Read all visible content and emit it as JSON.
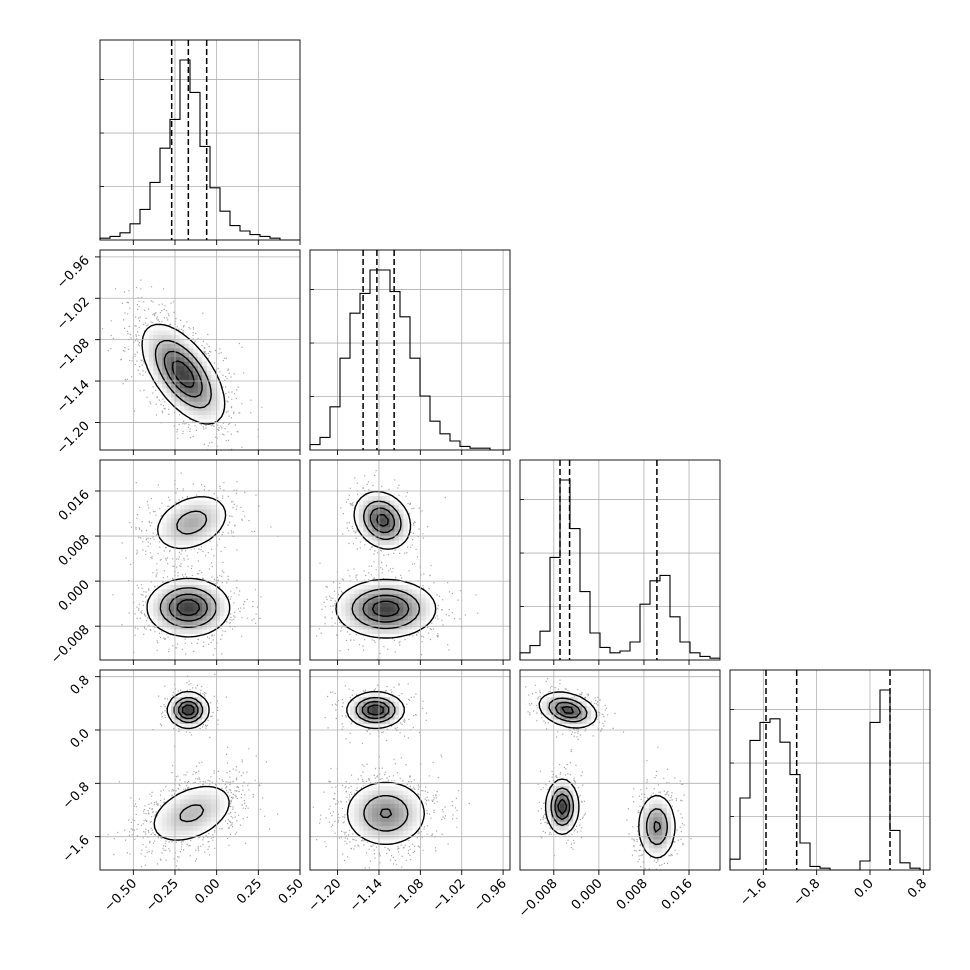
{
  "chart_data": {
    "type": "corner",
    "n_params": 4,
    "params": [
      {
        "range": [
          -0.7,
          0.5
        ],
        "ticks": [
          -0.5,
          -0.25,
          0.0,
          0.25,
          0.5
        ],
        "tick_labels": [
          "−0.50",
          "−0.25",
          "0.00",
          "0.25",
          "0.50"
        ],
        "quantiles": [
          -0.27,
          -0.17,
          -0.06
        ]
      },
      {
        "range": [
          -1.24,
          -0.95
        ],
        "ticks": [
          -1.2,
          -1.14,
          -1.08,
          -1.02,
          -0.96
        ],
        "tick_labels": [
          "−1.20",
          "−1.14",
          "−1.08",
          "−1.02",
          "−0.96"
        ],
        "quantiles": [
          -1.163,
          -1.143,
          -1.118
        ]
      },
      {
        "range": [
          -0.014,
          0.0215
        ],
        "ticks": [
          -0.008,
          0.0,
          0.008,
          0.016
        ],
        "tick_labels": [
          "−0.008",
          "0.000",
          "0.008",
          "0.016"
        ],
        "quantiles": [
          -0.0069,
          -0.0052,
          0.0103
        ]
      },
      {
        "range": [
          -2.1,
          0.9
        ],
        "ticks": [
          -1.6,
          -0.8,
          0.0,
          0.8
        ],
        "tick_labels": [
          "−1.6",
          "−0.8",
          "0.0",
          "0.8"
        ],
        "quantiles": [
          -1.56,
          -1.1,
          0.3
        ]
      }
    ],
    "histograms": [
      {
        "param": 0,
        "values": [
          1,
          2,
          4,
          9,
          17,
          32,
          51,
          67,
          100,
          82,
          52,
          29,
          16,
          8,
          5,
          3,
          2,
          1,
          0,
          0
        ]
      },
      {
        "param": 1,
        "values": [
          3,
          7,
          24,
          51,
          76,
          87,
          100,
          100,
          88,
          74,
          51,
          30,
          16,
          9,
          5,
          2,
          1,
          1,
          0,
          0
        ]
      },
      {
        "param": 2,
        "values": [
          4,
          8,
          16,
          57,
          100,
          73,
          38,
          15,
          7,
          4,
          5,
          10,
          31,
          44,
          47,
          24,
          10,
          4,
          2,
          1
        ]
      },
      {
        "param": 3,
        "values": [
          6,
          40,
          72,
          82,
          84,
          71,
          53,
          15,
          2,
          1,
          0,
          0,
          0,
          5,
          82,
          100,
          22,
          4,
          1,
          0
        ]
      }
    ],
    "panels_2d": [
      {
        "row": 1,
        "col": 0,
        "clusters": [
          {
            "cx": -0.2,
            "cy": -1.13,
            "sx": 0.12,
            "sy": 0.035,
            "rho": -0.6,
            "w": 1
          }
        ]
      },
      {
        "row": 2,
        "col": 0,
        "clusters": [
          {
            "cx": -0.15,
            "cy": 0.0104,
            "sx": 0.12,
            "sy": 0.0027,
            "rho": 0.3,
            "w": 0.35
          },
          {
            "cx": -0.17,
            "cy": -0.0047,
            "sx": 0.12,
            "sy": 0.0025,
            "rho": 0.0,
            "w": 0.65
          }
        ]
      },
      {
        "row": 2,
        "col": 1,
        "clusters": [
          {
            "cx": -1.135,
            "cy": 0.0108,
            "sx": 0.02,
            "sy": 0.0025,
            "rho": -0.2,
            "w": 0.35
          },
          {
            "cx": -1.13,
            "cy": -0.0049,
            "sx": 0.035,
            "sy": 0.0025,
            "rho": 0.0,
            "w": 0.65
          }
        ]
      },
      {
        "row": 3,
        "col": 0,
        "clusters": [
          {
            "cx": -0.17,
            "cy": 0.3,
            "sx": 0.06,
            "sy": 0.13,
            "rho": 0.0,
            "w": 0.35
          },
          {
            "cx": -0.15,
            "cy": -1.25,
            "sx": 0.14,
            "sy": 0.25,
            "rho": 0.4,
            "w": 0.65
          }
        ]
      },
      {
        "row": 3,
        "col": 1,
        "clusters": [
          {
            "cx": -1.145,
            "cy": 0.3,
            "sx": 0.02,
            "sy": 0.13,
            "rho": 0.0,
            "w": 0.35
          },
          {
            "cx": -1.13,
            "cy": -1.25,
            "sx": 0.03,
            "sy": 0.25,
            "rho": 0.0,
            "w": 0.65
          }
        ]
      },
      {
        "row": 3,
        "col": 2,
        "clusters": [
          {
            "cx": -0.0055,
            "cy": 0.3,
            "sx": 0.0025,
            "sy": 0.13,
            "rho": -0.3,
            "w": 0.35
          },
          {
            "cx": -0.0065,
            "cy": -1.15,
            "sx": 0.0014,
            "sy": 0.2,
            "rho": 0.0,
            "w": 0.32
          },
          {
            "cx": 0.0103,
            "cy": -1.45,
            "sx": 0.0017,
            "sy": 0.25,
            "rho": 0.0,
            "w": 0.33
          }
        ]
      }
    ],
    "grid": true,
    "colors": {
      "line": "#000000",
      "grid": "#b0b0b0",
      "density": "#000000"
    }
  }
}
